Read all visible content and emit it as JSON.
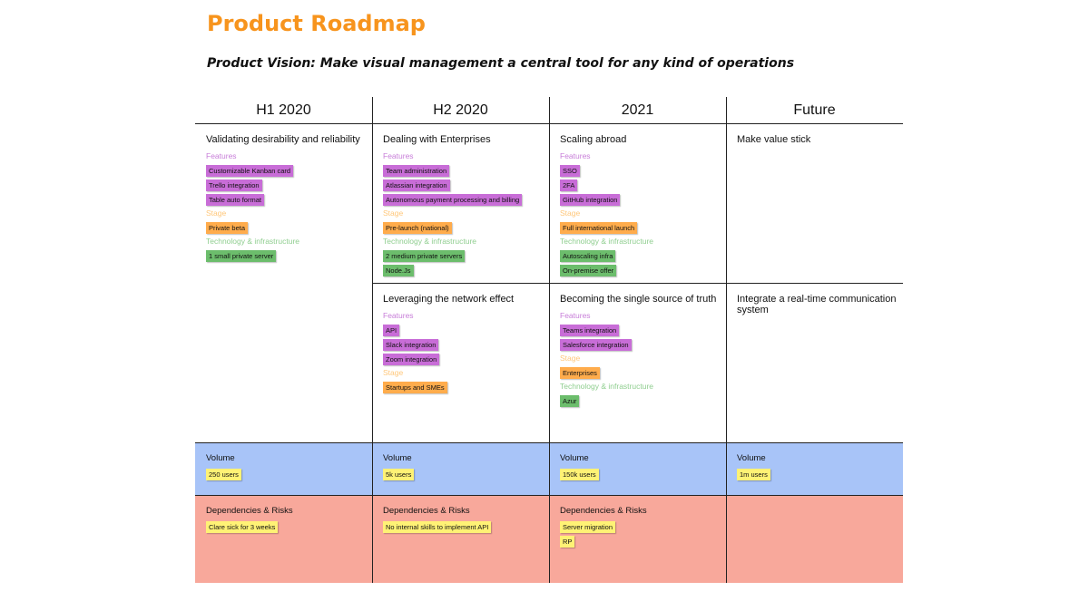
{
  "title": "Product Roadmap",
  "vision": "Product Vision: Make visual management a central tool for any kind of operations",
  "columns": [
    "H1 2020",
    "H2 2020",
    "2021",
    "Future"
  ],
  "rows": [
    {
      "cells": [
        {
          "title": "Validating desirability and reliability",
          "groups": [
            {
              "label": "Features",
              "items": [
                "Customizable Kanban card",
                "Trello integration",
                "Table auto format"
              ]
            },
            {
              "label": "Stage",
              "items": [
                "Private beta"
              ]
            },
            {
              "label": "Technology & infrastructure",
              "items": [
                "1 small private server"
              ]
            }
          ]
        },
        {
          "title": "Dealing with Enterprises",
          "groups": [
            {
              "label": "Features",
              "items": [
                "Team administration",
                "Atlassian integration",
                "Autonomous payment processing and billing"
              ]
            },
            {
              "label": "Stage",
              "items": [
                "Pre-launch (national)"
              ]
            },
            {
              "label": "Technology & infrastructure",
              "items": [
                "2 medium private servers",
                "Node.Js"
              ]
            }
          ]
        },
        {
          "title": "Scaling abroad",
          "groups": [
            {
              "label": "Features",
              "items": [
                "SSO",
                "2FA",
                "GitHub integration"
              ]
            },
            {
              "label": "Stage",
              "items": [
                "Full international launch"
              ]
            },
            {
              "label": "Technology & infrastructure",
              "items": [
                "Autoscaling infra",
                "On-premise offer"
              ]
            }
          ]
        },
        {
          "title": "Make value stick",
          "groups": []
        }
      ]
    },
    {
      "cells": [
        null,
        {
          "title": "Leveraging the network effect",
          "groups": [
            {
              "label": "Features",
              "items": [
                "API",
                "Slack integration",
                "Zoom integration"
              ]
            },
            {
              "label": "Stage",
              "items": [
                "Startups and SMEs"
              ]
            }
          ]
        },
        {
          "title": "Becoming the single source of truth",
          "groups": [
            {
              "label": "Features",
              "items": [
                "Teams integration",
                "Salesforce integration"
              ]
            },
            {
              "label": "Stage",
              "items": [
                "Enterprises"
              ]
            },
            {
              "label": "Technology & infrastructure",
              "items": [
                "Azur"
              ]
            }
          ]
        },
        {
          "title": "Integrate a real-time communication system",
          "groups": []
        }
      ]
    }
  ],
  "volume": [
    {
      "label": "Volume",
      "items": [
        "250 users"
      ]
    },
    {
      "label": "Volume",
      "items": [
        "5k users"
      ]
    },
    {
      "label": "Volume",
      "items": [
        "150k users"
      ]
    },
    {
      "label": "Volume",
      "items": [
        "1m users"
      ]
    }
  ],
  "risks": [
    {
      "label": "Dependencies & Risks",
      "items": [
        "Clare sick for 3 weeks"
      ]
    },
    {
      "label": "Dependencies & Risks",
      "items": [
        "No internal skills to implement API"
      ]
    },
    {
      "label": "Dependencies & Risks",
      "items": [
        "Server migration",
        "RP"
      ]
    },
    null
  ]
}
